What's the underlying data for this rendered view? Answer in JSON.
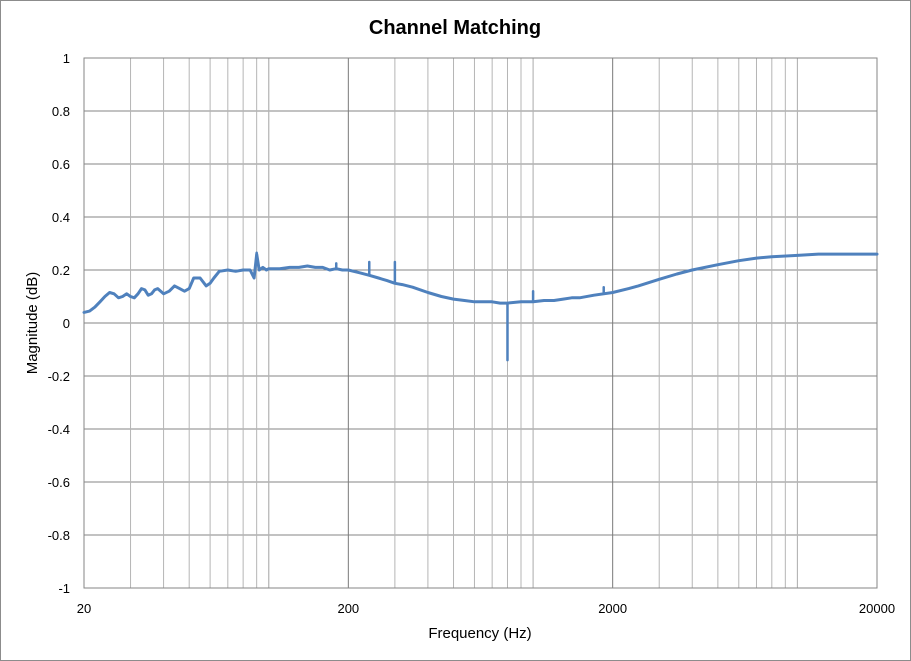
{
  "chart_data": {
    "type": "line",
    "title": "Channel Matching",
    "xlabel": "Frequency (Hz)",
    "ylabel": "Magnitude (dB)",
    "x_scale": "log",
    "xlim": [
      20,
      20000
    ],
    "ylim": [
      -1,
      1
    ],
    "x_tick_labels": [
      20,
      200,
      2000,
      20000
    ],
    "y_tick_labels": [
      1,
      0.8,
      0.6,
      0.4,
      0.2,
      0,
      -0.2,
      -0.4,
      -0.6,
      -0.8,
      -1
    ],
    "grid": true,
    "legend": "none",
    "line_color": "#4f81bd",
    "series": [
      {
        "x": [
          20,
          21,
          22,
          23,
          24,
          25,
          26,
          27,
          28,
          29,
          30,
          31,
          32,
          33,
          34,
          35,
          36,
          37,
          38,
          40,
          42,
          44,
          46,
          48,
          50,
          52,
          55,
          58,
          60,
          62,
          65,
          70,
          75,
          80,
          85,
          88,
          90,
          92,
          95,
          98,
          100,
          110,
          120,
          130,
          140,
          150,
          160,
          170,
          180,
          190,
          200,
          220,
          240,
          260,
          280,
          300,
          320,
          350,
          400,
          450,
          500,
          550,
          600,
          650,
          700,
          750,
          800,
          900,
          1000,
          1100,
          1200,
          1300,
          1400,
          1500,
          1700,
          2000,
          2300,
          2500,
          3000,
          3500,
          4000,
          5000,
          6000,
          7000,
          8000,
          10000,
          12000,
          15000,
          20000
        ],
        "y": [
          0.04,
          0.045,
          0.06,
          0.08,
          0.1,
          0.115,
          0.11,
          0.095,
          0.1,
          0.11,
          0.1,
          0.095,
          0.11,
          0.13,
          0.125,
          0.105,
          0.11,
          0.125,
          0.13,
          0.11,
          0.12,
          0.14,
          0.13,
          0.12,
          0.13,
          0.17,
          0.17,
          0.14,
          0.15,
          0.17,
          0.195,
          0.2,
          0.195,
          0.2,
          0.2,
          0.17,
          0.26,
          0.2,
          0.21,
          0.2,
          0.205,
          0.205,
          0.21,
          0.21,
          0.215,
          0.21,
          0.21,
          0.2,
          0.205,
          0.2,
          0.2,
          0.19,
          0.18,
          0.17,
          0.16,
          0.15,
          0.145,
          0.135,
          0.115,
          0.1,
          0.09,
          0.085,
          0.08,
          0.08,
          0.08,
          0.075,
          0.075,
          0.08,
          0.08,
          0.085,
          0.085,
          0.09,
          0.095,
          0.095,
          0.105,
          0.115,
          0.13,
          0.14,
          0.165,
          0.185,
          0.2,
          0.22,
          0.235,
          0.245,
          0.25,
          0.255,
          0.26,
          0.26,
          0.26
        ]
      }
    ],
    "spikes": [
      {
        "x": 90,
        "y": 0.265
      },
      {
        "x": 180,
        "y": 0.225
      },
      {
        "x": 240,
        "y": 0.23
      },
      {
        "x": 300,
        "y": 0.23
      },
      {
        "x": 800,
        "y": -0.14
      },
      {
        "x": 1000,
        "y": 0.12
      },
      {
        "x": 1850,
        "y": 0.135
      }
    ]
  }
}
